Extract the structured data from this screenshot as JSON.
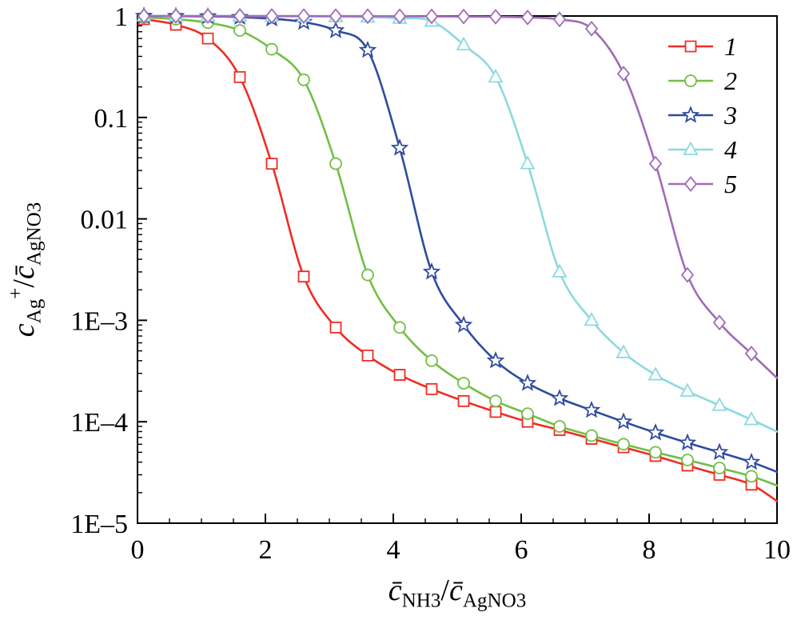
{
  "chart_data": {
    "type": "line",
    "title": "",
    "xlabel": "c̄_NH3 / c̄_AgNO3",
    "ylabel": "c_Ag+ / c̄_AgNO3",
    "xlabel_segments": [
      {
        "text": "c̄",
        "style": "i"
      },
      {
        "text": "NH3",
        "style": "sub"
      },
      {
        "text": "/",
        "style": ""
      },
      {
        "text": "c̄",
        "style": "i"
      },
      {
        "text": "AgNO3",
        "style": "sub"
      }
    ],
    "ylabel_segments": [
      {
        "text": "c",
        "style": "i"
      },
      {
        "text": "Ag",
        "style": "sub"
      },
      {
        "text": "+",
        "style": "sup"
      },
      {
        "text": "/",
        "style": ""
      },
      {
        "text": "c̄",
        "style": "i"
      },
      {
        "text": "AgNO3",
        "style": "sub"
      }
    ],
    "x_axis": {
      "min": 0,
      "max": 10,
      "major_ticks": [
        0,
        2,
        4,
        6,
        8,
        10
      ],
      "tick_labels": [
        "0",
        "2",
        "4",
        "6",
        "8",
        "10"
      ],
      "minor_step": 0.5
    },
    "y_axis": {
      "scale": "log",
      "min": 1e-05,
      "max": 1,
      "decade_labels": [
        "1",
        "0.1",
        "0.01",
        "1E–3",
        "1E–4",
        "1E–5"
      ]
    },
    "grid": false,
    "legend_position": "top-right",
    "frame_color": "#000000",
    "series": [
      {
        "name": "1",
        "color": "#ee2d24",
        "marker": "square",
        "points": [
          [
            0.1,
            0.93
          ],
          [
            0.6,
            0.82
          ],
          [
            1.1,
            0.6
          ],
          [
            1.6,
            0.25
          ],
          [
            2.1,
            0.035
          ],
          [
            2.6,
            0.0027
          ],
          [
            3.1,
            0.00085
          ],
          [
            3.6,
            0.00045
          ],
          [
            4.1,
            0.00029
          ],
          [
            4.6,
            0.00021
          ],
          [
            5.1,
            0.00016
          ],
          [
            5.6,
            0.000125
          ],
          [
            6.1,
            0.0001
          ],
          [
            6.6,
            8.3e-05
          ],
          [
            7.1,
            6.8e-05
          ],
          [
            7.6,
            5.6e-05
          ],
          [
            8.1,
            4.6e-05
          ],
          [
            8.6,
            3.7e-05
          ],
          [
            9.1,
            3e-05
          ],
          [
            9.6,
            2.4e-05
          ],
          [
            10,
            1.65e-05
          ]
        ]
      },
      {
        "name": "2",
        "color": "#72bf44",
        "marker": "circle",
        "points": [
          [
            0.1,
            0.97
          ],
          [
            0.6,
            0.93
          ],
          [
            1.1,
            0.86
          ],
          [
            1.6,
            0.72
          ],
          [
            2.1,
            0.47
          ],
          [
            2.6,
            0.235
          ],
          [
            3.1,
            0.035
          ],
          [
            3.6,
            0.0028
          ],
          [
            4.1,
            0.00085
          ],
          [
            4.6,
            0.0004
          ],
          [
            5.1,
            0.00024
          ],
          [
            5.6,
            0.00016
          ],
          [
            6.1,
            0.00012
          ],
          [
            6.6,
            9e-05
          ],
          [
            7.1,
            7.3e-05
          ],
          [
            7.6,
            6e-05
          ],
          [
            8.1,
            5e-05
          ],
          [
            8.6,
            4.2e-05
          ],
          [
            9.1,
            3.5e-05
          ],
          [
            9.6,
            2.9e-05
          ],
          [
            10,
            2.35e-05
          ]
        ]
      },
      {
        "name": "3",
        "color": "#2d4ba0",
        "marker": "star",
        "points": [
          [
            0.1,
            1.0
          ],
          [
            0.6,
            0.995
          ],
          [
            1.1,
            0.99
          ],
          [
            1.6,
            0.975
          ],
          [
            2.1,
            0.94
          ],
          [
            2.6,
            0.87
          ],
          [
            3.1,
            0.72
          ],
          [
            3.6,
            0.46
          ],
          [
            4.1,
            0.05
          ],
          [
            4.6,
            0.003
          ],
          [
            5.1,
            0.0009
          ],
          [
            5.6,
            0.0004
          ],
          [
            6.1,
            0.00024
          ],
          [
            6.6,
            0.00017
          ],
          [
            7.1,
            0.00013
          ],
          [
            7.6,
            0.0001
          ],
          [
            8.1,
            7.8e-05
          ],
          [
            8.6,
            6.2e-05
          ],
          [
            9.1,
            5e-05
          ],
          [
            9.6,
            4e-05
          ],
          [
            10,
            3.2e-05
          ]
        ]
      },
      {
        "name": "4",
        "color": "#8cd9e0",
        "marker": "triangle",
        "points": [
          [
            0.1,
            1.0
          ],
          [
            0.6,
            1.0
          ],
          [
            1.1,
            0.998
          ],
          [
            1.6,
            0.996
          ],
          [
            2.1,
            0.993
          ],
          [
            2.6,
            0.99
          ],
          [
            3.1,
            0.985
          ],
          [
            3.6,
            0.975
          ],
          [
            4.1,
            0.95
          ],
          [
            4.6,
            0.89
          ],
          [
            5.1,
            0.52
          ],
          [
            5.6,
            0.25
          ],
          [
            6.1,
            0.035
          ],
          [
            6.6,
            0.003
          ],
          [
            7.1,
            0.001
          ],
          [
            7.6,
            0.00048
          ],
          [
            8.1,
            0.00029
          ],
          [
            8.6,
            0.0002
          ],
          [
            9.1,
            0.000145
          ],
          [
            9.6,
            0.000105
          ],
          [
            10,
            8e-05
          ]
        ]
      },
      {
        "name": "5",
        "color": "#9f6bb8",
        "marker": "diamond",
        "points": [
          [
            0.1,
            1.0
          ],
          [
            0.6,
            1.0
          ],
          [
            1.1,
            1.0
          ],
          [
            1.6,
            1.0
          ],
          [
            2.1,
            0.999
          ],
          [
            2.6,
            0.998
          ],
          [
            3.1,
            0.997
          ],
          [
            3.6,
            0.996
          ],
          [
            4.1,
            0.994
          ],
          [
            4.6,
            0.992
          ],
          [
            5.1,
            0.988
          ],
          [
            5.6,
            0.982
          ],
          [
            6.1,
            0.968
          ],
          [
            6.6,
            0.925
          ],
          [
            7.1,
            0.75
          ],
          [
            7.6,
            0.27
          ],
          [
            8.1,
            0.035
          ],
          [
            8.6,
            0.0028
          ],
          [
            9.1,
            0.00095
          ],
          [
            9.6,
            0.00047
          ],
          [
            10,
            0.00027
          ]
        ]
      }
    ]
  }
}
